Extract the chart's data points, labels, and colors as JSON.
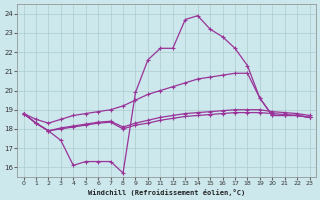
{
  "xlabel": "Windchill (Refroidissement éolien,°C)",
  "x_ticks": [
    0,
    1,
    2,
    3,
    4,
    5,
    6,
    7,
    8,
    9,
    10,
    11,
    12,
    13,
    14,
    15,
    16,
    17,
    18,
    19,
    20,
    21,
    22,
    23
  ],
  "ylim": [
    15.5,
    24.5
  ],
  "yticks": [
    16,
    17,
    18,
    19,
    20,
    21,
    22,
    23,
    24
  ],
  "background_color": "#cce8ec",
  "grid_color": "#aacccc",
  "line_color": "#993399",
  "curve_main": [
    18.8,
    18.3,
    17.9,
    17.4,
    16.1,
    16.3,
    16.3,
    16.3,
    15.7,
    19.9,
    21.6,
    22.2,
    22.2,
    23.7,
    23.9,
    23.2,
    22.8,
    22.2,
    21.3,
    19.6,
    18.7,
    18.7,
    18.7,
    18.6
  ],
  "curve_top": [
    18.8,
    18.5,
    18.3,
    18.5,
    18.7,
    18.8,
    18.9,
    19.0,
    19.2,
    19.5,
    19.8,
    20.0,
    20.2,
    20.4,
    20.6,
    20.7,
    20.8,
    20.9,
    20.9,
    19.6,
    18.7,
    18.7,
    18.7,
    18.6
  ],
  "curve_mid1": [
    18.8,
    18.3,
    17.9,
    18.0,
    18.1,
    18.2,
    18.3,
    18.35,
    18.0,
    18.2,
    18.3,
    18.45,
    18.55,
    18.65,
    18.7,
    18.75,
    18.8,
    18.85,
    18.85,
    18.85,
    18.8,
    18.75,
    18.7,
    18.6
  ],
  "curve_mid2": [
    18.8,
    18.3,
    17.9,
    18.05,
    18.15,
    18.25,
    18.35,
    18.4,
    18.1,
    18.3,
    18.45,
    18.6,
    18.7,
    18.8,
    18.85,
    18.9,
    18.95,
    19.0,
    19.0,
    19.0,
    18.9,
    18.85,
    18.8,
    18.7
  ]
}
